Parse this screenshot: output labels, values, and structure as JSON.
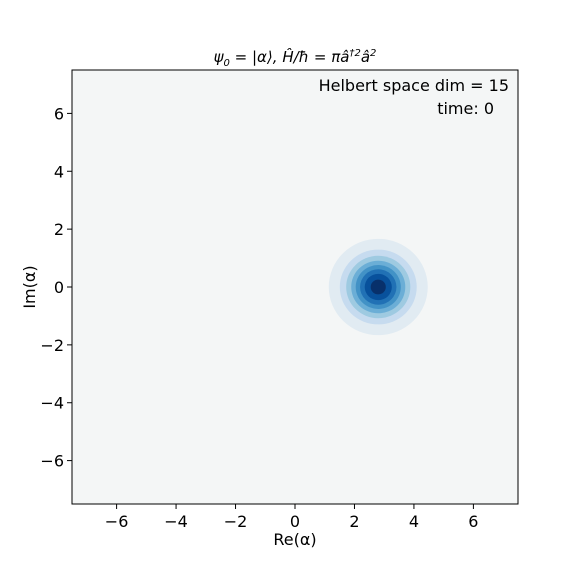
{
  "chart_data": {
    "type": "heatmap",
    "title_parts": {
      "psi": "ψ",
      "psi_sub": "0",
      "eq1": " = |α⟩, ",
      "h_hat": "Ĥ",
      "over_hbar": "/ħ = π",
      "a_dag": "â",
      "a_dag_sup": "†2",
      "a_hat": "â",
      "a_sup": "2"
    },
    "xlabel": "Re(α)",
    "ylabel": "Im(α)",
    "xlim": [
      -7.5,
      7.5
    ],
    "ylim": [
      -7.5,
      7.5
    ],
    "x_ticks": [
      -6,
      -4,
      -2,
      0,
      2,
      4,
      6
    ],
    "y_ticks": [
      -6,
      -4,
      -2,
      0,
      2,
      4,
      6
    ],
    "x_tick_labels": [
      "−6",
      "−4",
      "−2",
      "0",
      "2",
      "4",
      "6"
    ],
    "y_tick_labels": [
      "−6",
      "−4",
      "−2",
      "0",
      "2",
      "4",
      "6"
    ],
    "annotations": {
      "dim_text": "Helbert space dim = 15",
      "time_text": "time: 0"
    },
    "grid": false,
    "colormap": "Blues",
    "background_color": "#f4f6f6",
    "distribution": {
      "shape": "gaussian",
      "center": [
        2.8,
        0.0
      ],
      "sigma": 0.707,
      "contour_levels": 8
    },
    "contour_colors": [
      "#e1ebf2",
      "#c6dbef",
      "#9ecae1",
      "#6baed6",
      "#4292c6",
      "#2171b5",
      "#08519c",
      "#08306b"
    ]
  }
}
